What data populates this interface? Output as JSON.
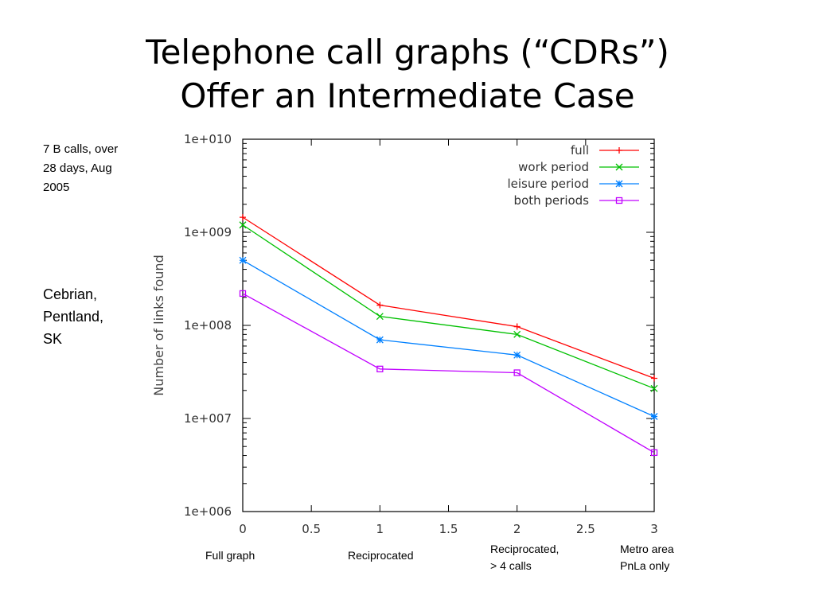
{
  "slide": {
    "title_line1": "Telephone call graphs (“CDRs”)",
    "title_line2": "Offer an Intermediate Case",
    "note_calls": "7 B calls, over\n28 days, Aug\n2005",
    "note_authors": "Cebrian,\nPentland,\nSK"
  },
  "categories": [
    {
      "x": 0,
      "label": "Full graph"
    },
    {
      "x": 1,
      "label": "Reciprocated"
    },
    {
      "x": 2,
      "label": "Reciprocated,\n> 4 calls"
    },
    {
      "x": 3,
      "label": "Metro  area\nPnLa only"
    }
  ],
  "chart_data": {
    "type": "line",
    "ylabel": "Number of links found",
    "xlabel": "",
    "x": [
      0,
      1,
      2,
      3
    ],
    "xlim": [
      0,
      3
    ],
    "ylim": [
      1000000,
      10000000000
    ],
    "yscale": "log",
    "x_ticks": [
      "0",
      "0.5",
      "1",
      "1.5",
      "2",
      "2.5",
      "3"
    ],
    "y_ticks": [
      "1e+006",
      "1e+007",
      "1e+008",
      "1e+009",
      "1e+010"
    ],
    "grid": false,
    "legend_position": "top-right",
    "series": [
      {
        "name": "full",
        "color": "#ff0000",
        "marker": "plus",
        "values": [
          1450000000,
          165000000,
          97000000,
          27000000
        ]
      },
      {
        "name": "work period",
        "color": "#00c000",
        "marker": "cross",
        "values": [
          1200000000,
          125000000,
          80000000,
          21000000
        ]
      },
      {
        "name": "leisure period",
        "color": "#0080ff",
        "marker": "star",
        "values": [
          500000000,
          70000000,
          48000000,
          10500000
        ]
      },
      {
        "name": "both periods",
        "color": "#c000ff",
        "marker": "square",
        "values": [
          220000000,
          34000000,
          31000000,
          4300000
        ]
      }
    ]
  }
}
